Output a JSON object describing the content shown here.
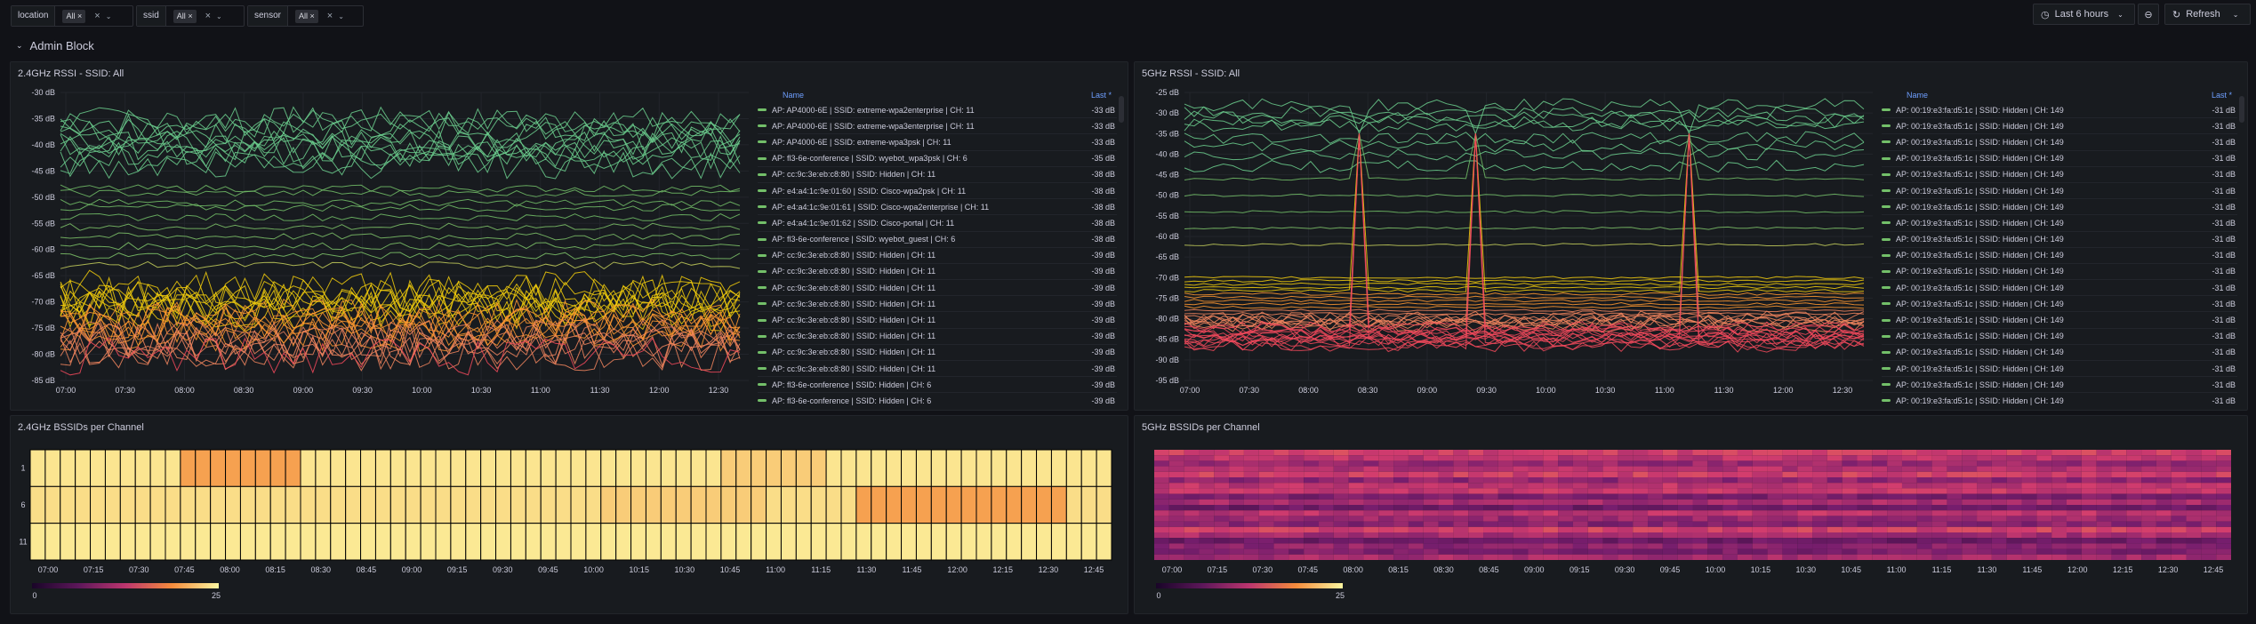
{
  "variables": [
    {
      "label": "location",
      "value": "All"
    },
    {
      "label": "ssid",
      "value": "All"
    },
    {
      "label": "sensor",
      "value": "All"
    }
  ],
  "toolbar": {
    "time_range": "Last 6 hours",
    "refresh": "Refresh"
  },
  "row": {
    "title": "Admin Block"
  },
  "panels": {
    "rssi24": {
      "title": "2.4GHz RSSI - SSID: All",
      "y_ticks": [
        "-30 dB",
        "-35 dB",
        "-40 dB",
        "-45 dB",
        "-50 dB",
        "-55 dB",
        "-60 dB",
        "-65 dB",
        "-70 dB",
        "-75 dB",
        "-80 dB",
        "-85 dB"
      ],
      "x_ticks": [
        "07:00",
        "07:30",
        "08:00",
        "08:30",
        "09:00",
        "09:30",
        "10:00",
        "10:30",
        "11:00",
        "11:30",
        "12:00",
        "12:30"
      ],
      "legend_name": "Name",
      "legend_last": "Last *",
      "legend": [
        {
          "name": "AP: AP4000-6E | SSID: extreme-wpa2enterprise | CH: 11",
          "last": "-33 dB",
          "color": "#73bf69"
        },
        {
          "name": "AP: AP4000-6E | SSID: extreme-wpa3enterprise | CH: 11",
          "last": "-33 dB",
          "color": "#73bf69"
        },
        {
          "name": "AP: AP4000-6E | SSID: extreme-wpa3psk | CH: 11",
          "last": "-33 dB",
          "color": "#73bf69"
        },
        {
          "name": "AP: fl3-6e-conference | SSID: wyebot_wpa3psk | CH: 6",
          "last": "-35 dB",
          "color": "#73bf69"
        },
        {
          "name": "AP: cc:9c:3e:eb:c8:80 | SSID: Hidden | CH: 11",
          "last": "-38 dB",
          "color": "#73bf69"
        },
        {
          "name": "AP: e4:a4:1c:9e:01:60 | SSID: Cisco-wpa2psk | CH: 11",
          "last": "-38 dB",
          "color": "#73bf69"
        },
        {
          "name": "AP: e4:a4:1c:9e:01:61 | SSID: Cisco-wpa2enterprise | CH: 11",
          "last": "-38 dB",
          "color": "#73bf69"
        },
        {
          "name": "AP: e4:a4:1c:9e:01:62 | SSID: Cisco-portal | CH: 11",
          "last": "-38 dB",
          "color": "#73bf69"
        },
        {
          "name": "AP: fl3-6e-conference | SSID: wyebot_guest | CH: 6",
          "last": "-38 dB",
          "color": "#73bf69"
        },
        {
          "name": "AP: cc:9c:3e:eb:c8:80 | SSID: Hidden | CH: 11",
          "last": "-39 dB",
          "color": "#73bf69"
        },
        {
          "name": "AP: cc:9c:3e:eb:c8:80 | SSID: Hidden | CH: 11",
          "last": "-39 dB",
          "color": "#73bf69"
        },
        {
          "name": "AP: cc:9c:3e:eb:c8:80 | SSID: Hidden | CH: 11",
          "last": "-39 dB",
          "color": "#73bf69"
        },
        {
          "name": "AP: cc:9c:3e:eb:c8:80 | SSID: Hidden | CH: 11",
          "last": "-39 dB",
          "color": "#73bf69"
        },
        {
          "name": "AP: cc:9c:3e:eb:c8:80 | SSID: Hidden | CH: 11",
          "last": "-39 dB",
          "color": "#73bf69"
        },
        {
          "name": "AP: cc:9c:3e:eb:c8:80 | SSID: Hidden | CH: 11",
          "last": "-39 dB",
          "color": "#73bf69"
        },
        {
          "name": "AP: cc:9c:3e:eb:c8:80 | SSID: Hidden | CH: 11",
          "last": "-39 dB",
          "color": "#73bf69"
        },
        {
          "name": "AP: cc:9c:3e:eb:c8:80 | SSID: Hidden | CH: 11",
          "last": "-39 dB",
          "color": "#73bf69"
        },
        {
          "name": "AP: fl3-6e-conference | SSID: Hidden | CH: 6",
          "last": "-39 dB",
          "color": "#73bf69"
        },
        {
          "name": "AP: fl3-6e-conference | SSID: Hidden | CH: 6",
          "last": "-39 dB",
          "color": "#73bf69"
        }
      ]
    },
    "rssi5": {
      "title": "5GHz RSSI - SSID: All",
      "y_ticks": [
        "-25 dB",
        "-30 dB",
        "-35 dB",
        "-40 dB",
        "-45 dB",
        "-50 dB",
        "-55 dB",
        "-60 dB",
        "-65 dB",
        "-70 dB",
        "-75 dB",
        "-80 dB",
        "-85 dB",
        "-90 dB",
        "-95 dB"
      ],
      "x_ticks": [
        "07:00",
        "07:30",
        "08:00",
        "08:30",
        "09:00",
        "09:30",
        "10:00",
        "10:30",
        "11:00",
        "11:30",
        "12:00",
        "12:30"
      ],
      "legend_name": "Name",
      "legend_last": "Last *",
      "legend_row": {
        "name": "AP: 00:19:e3:fa:d5:1c | SSID: Hidden | CH: 149",
        "last": "-31 dB",
        "color": "#73bf69"
      },
      "legend_count": 19
    },
    "bssid24": {
      "title": "2.4GHz BSSIDs per Channel",
      "y_ticks": [
        "1",
        "6",
        "11"
      ],
      "x_ticks": [
        "07:00",
        "07:15",
        "07:30",
        "07:45",
        "08:00",
        "08:15",
        "08:30",
        "08:45",
        "09:00",
        "09:15",
        "09:30",
        "09:45",
        "10:00",
        "10:15",
        "10:30",
        "10:45",
        "11:00",
        "11:15",
        "11:30",
        "11:45",
        "12:00",
        "12:15",
        "12:30",
        "12:45"
      ],
      "scale_min": "0",
      "scale_max": "25"
    },
    "bssid5": {
      "title": "5GHz BSSIDs per Channel",
      "x_ticks": [
        "07:00",
        "07:15",
        "07:30",
        "07:45",
        "08:00",
        "08:15",
        "08:30",
        "08:45",
        "09:00",
        "09:15",
        "09:30",
        "09:45",
        "10:00",
        "10:15",
        "10:30",
        "10:45",
        "11:00",
        "11:15",
        "11:30",
        "11:45",
        "12:00",
        "12:15",
        "12:30",
        "12:45"
      ],
      "scale_min": "0",
      "scale_max": "25"
    }
  }
}
